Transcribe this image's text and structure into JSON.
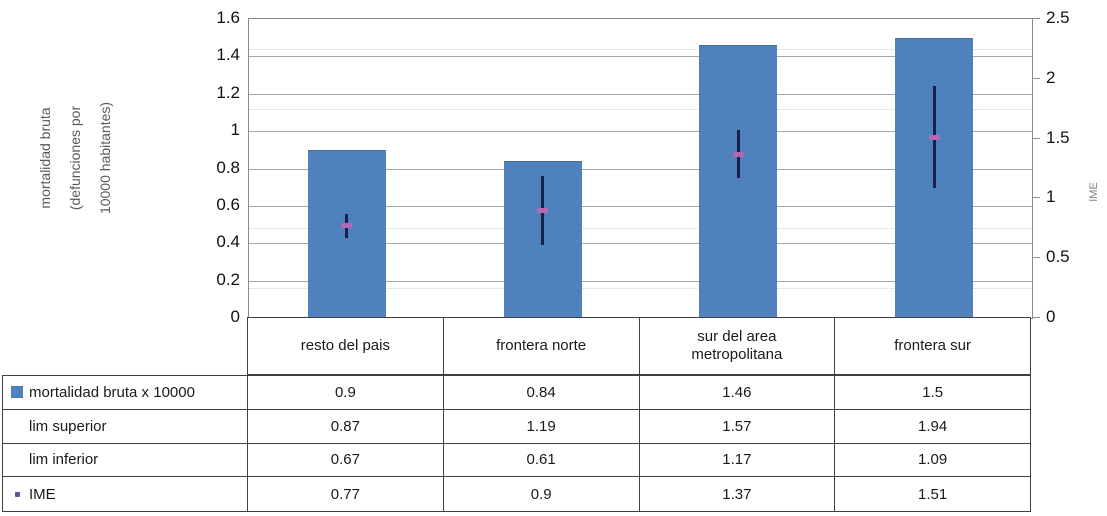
{
  "chart_data": {
    "type": "bar",
    "title": "",
    "categories": [
      "resto del pais",
      "frontera norte",
      "sur del area metropolitana",
      "frontera sur"
    ],
    "series": [
      {
        "name": "mortalidad bruta x 10000",
        "render": "bar",
        "axis": "left",
        "values": [
          0.9,
          0.84,
          1.46,
          1.5
        ],
        "color": "#4f81bd"
      },
      {
        "name": "lim superior",
        "render": "error-bar-top",
        "axis": "right",
        "values": [
          0.87,
          1.19,
          1.57,
          1.94
        ],
        "color": "#16204a"
      },
      {
        "name": "lim inferior",
        "render": "error-bar-bottom",
        "axis": "right",
        "values": [
          0.67,
          0.61,
          1.17,
          1.09
        ],
        "color": "#16204a"
      },
      {
        "name": "IME",
        "render": "marker",
        "axis": "right",
        "values": [
          0.77,
          0.9,
          1.37,
          1.51
        ],
        "color": "#b567b5"
      }
    ],
    "left_axis": {
      "title": "mortalidad bruta (defunciones por 10000 habitantes)",
      "title_lines": {
        "0": "mortalidad bruta",
        "1": "(defunciones por",
        "2": "10000 habitantes)"
      },
      "min": 0,
      "max": 1.6,
      "major": 0.2,
      "ticks": [
        "1.6",
        "1.4",
        "1.2",
        "1",
        "0.8",
        "0.6",
        "0.4",
        "0.2",
        "0"
      ]
    },
    "right_axis": {
      "title": "IME",
      "min": 0,
      "max": 2.5,
      "major": 0.5,
      "minor": 0.25,
      "ticks": [
        "2.5",
        "2",
        "1.5",
        "1",
        "0.5",
        "0"
      ]
    },
    "grid": "major-solid-minor-dotted",
    "legend_position": "data-table-left-column"
  },
  "table": {
    "columns": [
      "resto del pais",
      "frontera norte",
      "sur del area metropolitana",
      "frontera sur"
    ],
    "rows": [
      {
        "label": "mortalidad bruta x 10000",
        "icon": "bar-series-swatch",
        "values": [
          "0.9",
          "0.84",
          "1.46",
          "1.5"
        ]
      },
      {
        "label": "lim superior",
        "icon": null,
        "values": [
          "0.87",
          "1.19",
          "1.57",
          "1.94"
        ]
      },
      {
        "label": "lim inferior",
        "icon": null,
        "values": [
          "0.67",
          "0.61",
          "1.17",
          "1.09"
        ]
      },
      {
        "label": "IME",
        "icon": "ime-marker-dot",
        "values": [
          "0.77",
          "0.9",
          "1.37",
          "1.51"
        ]
      }
    ]
  },
  "colors": {
    "bar": "#4f81bd",
    "error_line": "#16204a",
    "ime_marker": "#b567b5",
    "major_grid": "#a6a6a6",
    "minor_grid": "#cfcfcf",
    "plot_border": "#8c8c8c",
    "table_border": "#404040"
  }
}
